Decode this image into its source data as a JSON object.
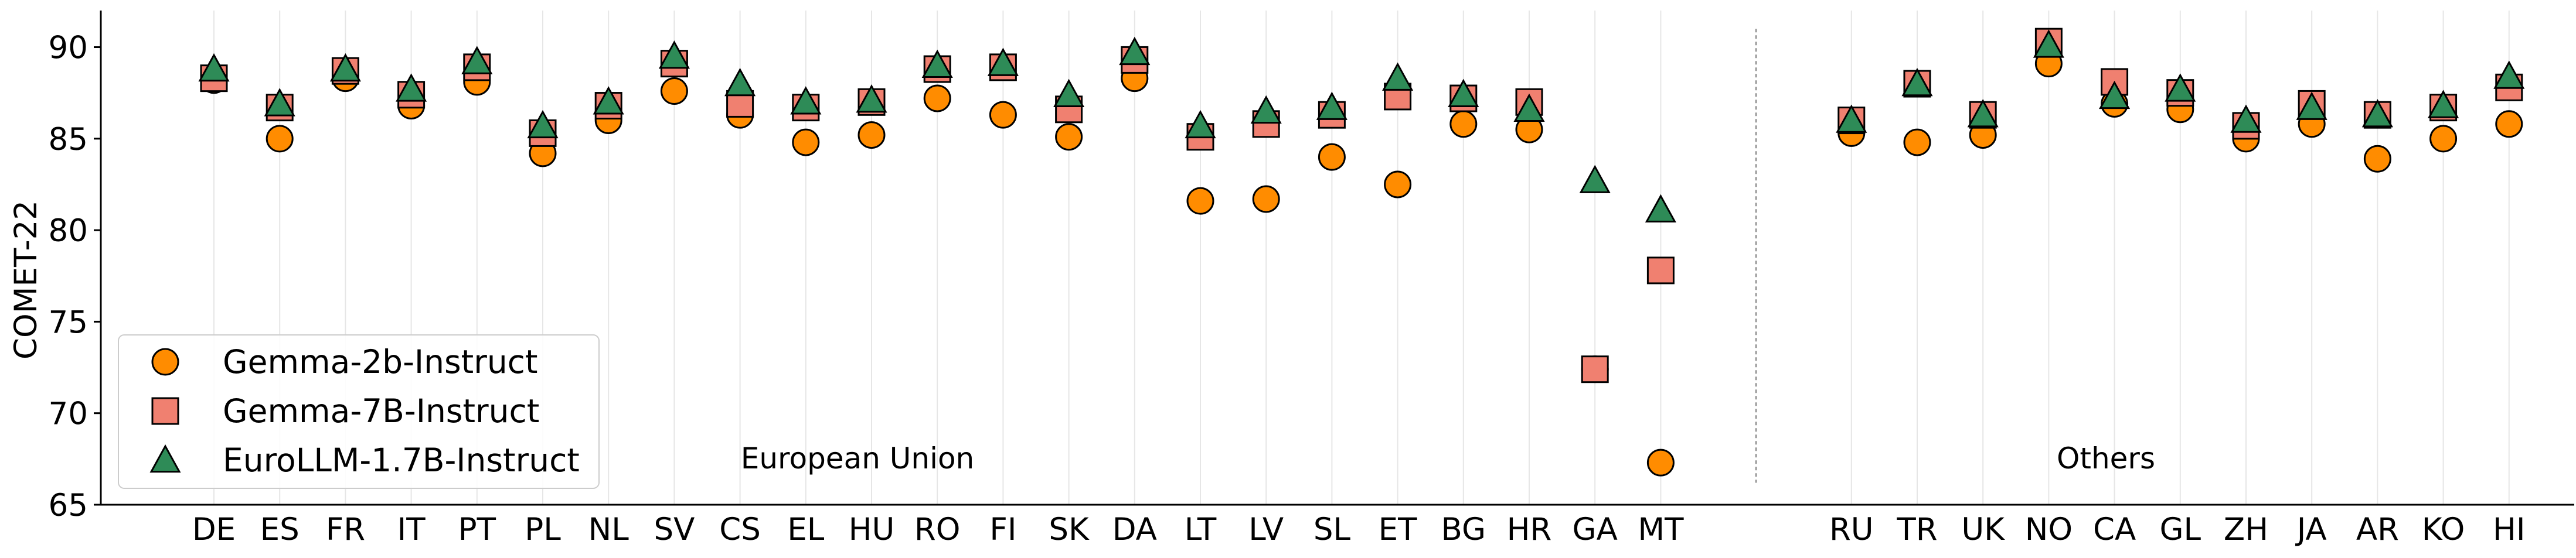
{
  "chart_data": {
    "type": "scatter",
    "ylabel": "COMET-22",
    "xlabel": "",
    "ylim": [
      65,
      92
    ],
    "yticks": [
      65,
      70,
      75,
      80,
      85,
      90
    ],
    "grid": "vertical",
    "legend_position": "bottom-left",
    "colors": {
      "gemma2b": "#ff8c00",
      "gemma7b": "#f08070",
      "eurollm": "#2e8b57"
    },
    "groups": [
      {
        "label": "European Union",
        "categories": [
          "DE",
          "ES",
          "FR",
          "IT",
          "PT",
          "PL",
          "NL",
          "SV",
          "CS",
          "EL",
          "HU",
          "RO",
          "FI",
          "SK",
          "DA",
          "LT",
          "LV",
          "SL",
          "ET",
          "BG",
          "HR",
          "GA",
          "MT"
        ]
      },
      {
        "label": "Others",
        "categories": [
          "RU",
          "TR",
          "UK",
          "NO",
          "CA",
          "GL",
          "ZH",
          "JA",
          "AR",
          "KO",
          "HI"
        ]
      }
    ],
    "categories": [
      "DE",
      "ES",
      "FR",
      "IT",
      "PT",
      "PL",
      "NL",
      "SV",
      "CS",
      "EL",
      "HU",
      "RO",
      "FI",
      "SK",
      "DA",
      "LT",
      "LV",
      "SL",
      "ET",
      "BG",
      "HR",
      "GA",
      "MT",
      "RU",
      "TR",
      "UK",
      "NO",
      "CA",
      "GL",
      "ZH",
      "JA",
      "AR",
      "KO",
      "HI"
    ],
    "series": [
      {
        "name": "Gemma-2b-Instruct",
        "marker": "circle",
        "color_key": "gemma2b",
        "values": [
          88.2,
          85.0,
          88.3,
          86.8,
          88.1,
          84.2,
          86.0,
          87.6,
          86.3,
          84.8,
          85.2,
          87.2,
          86.3,
          85.1,
          88.3,
          81.6,
          81.7,
          84.0,
          82.5,
          85.8,
          85.5,
          72.4,
          67.3,
          85.3,
          84.8,
          85.2,
          89.1,
          86.9,
          86.6,
          85.0,
          85.8,
          83.9,
          85.0,
          85.8
        ]
      },
      {
        "name": "Gemma-7B-Instruct",
        "marker": "square",
        "color_key": "gemma7b",
        "values": [
          88.3,
          86.7,
          88.7,
          87.4,
          88.9,
          85.3,
          86.8,
          89.1,
          86.9,
          86.7,
          87.0,
          88.8,
          88.9,
          86.6,
          89.3,
          85.1,
          85.8,
          86.3,
          87.3,
          87.2,
          87.0,
          72.4,
          77.8,
          86.0,
          88.0,
          86.3,
          90.3,
          88.1,
          87.5,
          85.7,
          86.9,
          86.3,
          86.7,
          87.8
        ]
      },
      {
        "name": "EuroLLM-1.7B-Instruct",
        "marker": "triangle",
        "color_key": "eurollm",
        "values": [
          88.8,
          86.9,
          88.8,
          87.7,
          89.2,
          85.7,
          87.0,
          89.5,
          88.0,
          87.0,
          87.1,
          89.0,
          89.1,
          87.4,
          89.7,
          85.7,
          86.5,
          86.7,
          88.3,
          87.4,
          86.6,
          82.7,
          81.1,
          86.0,
          88.0,
          86.3,
          90.1,
          87.3,
          87.7,
          86.0,
          86.7,
          86.3,
          86.8,
          88.4
        ]
      }
    ]
  }
}
